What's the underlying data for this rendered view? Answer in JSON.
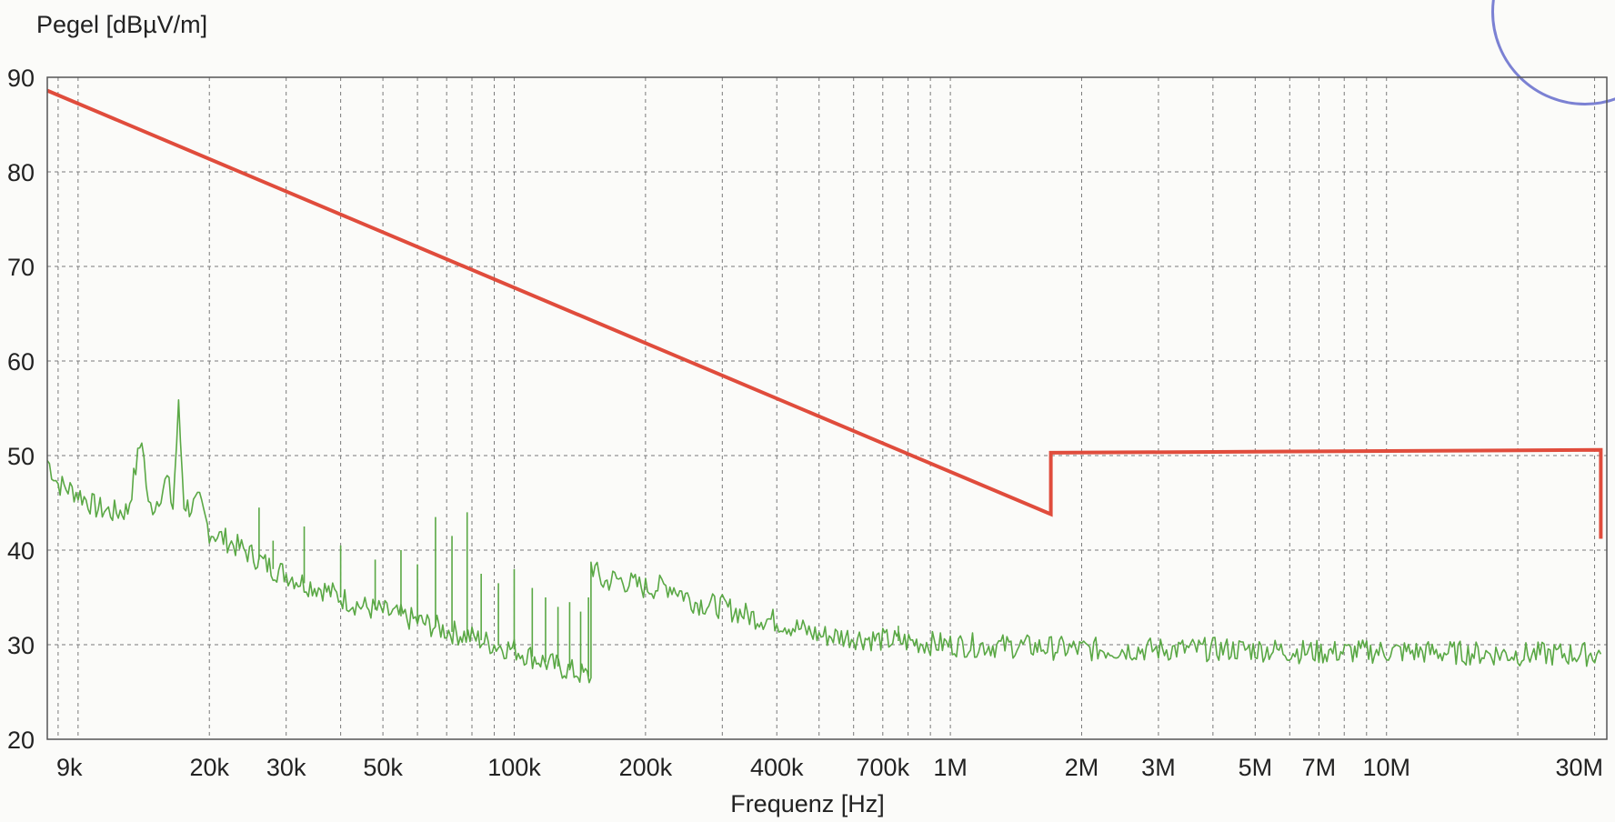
{
  "chart_data": {
    "type": "line",
    "xlabel": "Frequenz [Hz]",
    "ylabel": "Pegel [dBµV/m]",
    "x_scale": "log",
    "xlim": [
      8500,
      32000000
    ],
    "ylim": [
      20,
      90
    ],
    "y_ticks": [
      {
        "value": 20,
        "label": "20"
      },
      {
        "value": 30,
        "label": "30"
      },
      {
        "value": 40,
        "label": "40"
      },
      {
        "value": 50,
        "label": "50"
      },
      {
        "value": 60,
        "label": "60"
      },
      {
        "value": 70,
        "label": "70"
      },
      {
        "value": 80,
        "label": "80"
      },
      {
        "value": 90,
        "label": "90"
      }
    ],
    "x_ticks": [
      {
        "value": 9000,
        "label": "9k"
      },
      {
        "value": 20000,
        "label": "20k"
      },
      {
        "value": 30000,
        "label": "30k"
      },
      {
        "value": 50000,
        "label": "50k"
      },
      {
        "value": 100000,
        "label": "100k"
      },
      {
        "value": 200000,
        "label": "200k"
      },
      {
        "value": 400000,
        "label": "400k"
      },
      {
        "value": 700000,
        "label": "700k"
      },
      {
        "value": 1000000,
        "label": "1M"
      },
      {
        "value": 2000000,
        "label": "2M"
      },
      {
        "value": 3000000,
        "label": "3M"
      },
      {
        "value": 5000000,
        "label": "5M"
      },
      {
        "value": 7000000,
        "label": "7M"
      },
      {
        "value": 10000000,
        "label": "10M"
      },
      {
        "value": 30000000,
        "label": "30M"
      }
    ],
    "x_grid": [
      9000,
      10000,
      20000,
      30000,
      40000,
      50000,
      60000,
      70000,
      80000,
      90000,
      100000,
      200000,
      300000,
      400000,
      500000,
      600000,
      700000,
      800000,
      900000,
      1000000,
      2000000,
      3000000,
      4000000,
      5000000,
      6000000,
      7000000,
      8000000,
      9000000,
      10000000,
      20000000,
      30000000
    ],
    "grid": true,
    "series": [
      {
        "color": "#e04c3c",
        "points": [
          [
            8500,
            88.6
          ],
          [
            1700000,
            43.8
          ],
          [
            1700000,
            50.3
          ],
          [
            31000000,
            50.6
          ],
          [
            31000000,
            41.2
          ]
        ]
      },
      {
        "color": "#5aa845",
        "points": [
          [
            8500,
            49.5
          ],
          [
            9000,
            47.0
          ],
          [
            10000,
            46.0
          ],
          [
            11000,
            44.5
          ],
          [
            12000,
            44.0
          ],
          [
            13000,
            44.2
          ],
          [
            14000,
            52.0
          ],
          [
            14500,
            44.5
          ],
          [
            15000,
            44.8
          ],
          [
            16000,
            47.5
          ],
          [
            16500,
            44.5
          ],
          [
            17000,
            55.0
          ],
          [
            17500,
            45.0
          ],
          [
            18000,
            44.5
          ],
          [
            19000,
            45.0
          ],
          [
            20000,
            42.0
          ],
          [
            22000,
            41.0
          ],
          [
            25000,
            39.5
          ],
          [
            28000,
            38.0
          ],
          [
            30000,
            37.5
          ],
          [
            33000,
            36.5
          ],
          [
            36000,
            36.0
          ],
          [
            40000,
            35.0
          ],
          [
            45000,
            34.0
          ],
          [
            50000,
            33.5
          ],
          [
            55000,
            33.0
          ],
          [
            60000,
            32.5
          ],
          [
            70000,
            31.5
          ],
          [
            80000,
            30.8
          ],
          [
            90000,
            30.0
          ],
          [
            100000,
            29.5
          ],
          [
            120000,
            28.0
          ],
          [
            140000,
            27.0
          ],
          [
            150000,
            26.5
          ],
          [
            150000,
            38.5
          ],
          [
            160000,
            36.5
          ],
          [
            170000,
            37.0
          ],
          [
            200000,
            36.0
          ],
          [
            230000,
            36.2
          ],
          [
            260000,
            34.5
          ],
          [
            300000,
            34.0
          ],
          [
            350000,
            33.0
          ],
          [
            400000,
            32.5
          ],
          [
            500000,
            31.0
          ],
          [
            600000,
            30.8
          ],
          [
            700000,
            30.5
          ],
          [
            1000000,
            30.0
          ],
          [
            1500000,
            29.8
          ],
          [
            2000000,
            29.5
          ],
          [
            3000000,
            29.5
          ],
          [
            5000000,
            29.5
          ],
          [
            7000000,
            29.2
          ],
          [
            10000000,
            29.3
          ],
          [
            20000000,
            29.0
          ],
          [
            31000000,
            29.0
          ]
        ]
      }
    ],
    "spikes": [
      [
        14000,
        52.0
      ],
      [
        16000,
        47.5
      ],
      [
        17000,
        55.2
      ],
      [
        26000,
        44.5
      ],
      [
        28000,
        41.0
      ],
      [
        33000,
        42.5
      ],
      [
        40000,
        40.5
      ],
      [
        48000,
        39.0
      ],
      [
        55000,
        40.0
      ],
      [
        60000,
        38.5
      ],
      [
        66000,
        43.5
      ],
      [
        72000,
        41.5
      ],
      [
        78000,
        44.0
      ],
      [
        84000,
        37.5
      ],
      [
        92000,
        36.5
      ],
      [
        100000,
        38.0
      ],
      [
        110000,
        36.0
      ],
      [
        118000,
        35.0
      ],
      [
        126000,
        34.0
      ],
      [
        134000,
        34.5
      ],
      [
        142000,
        33.5
      ],
      [
        148000,
        35.0
      ],
      [
        760000,
        32.0
      ]
    ]
  }
}
